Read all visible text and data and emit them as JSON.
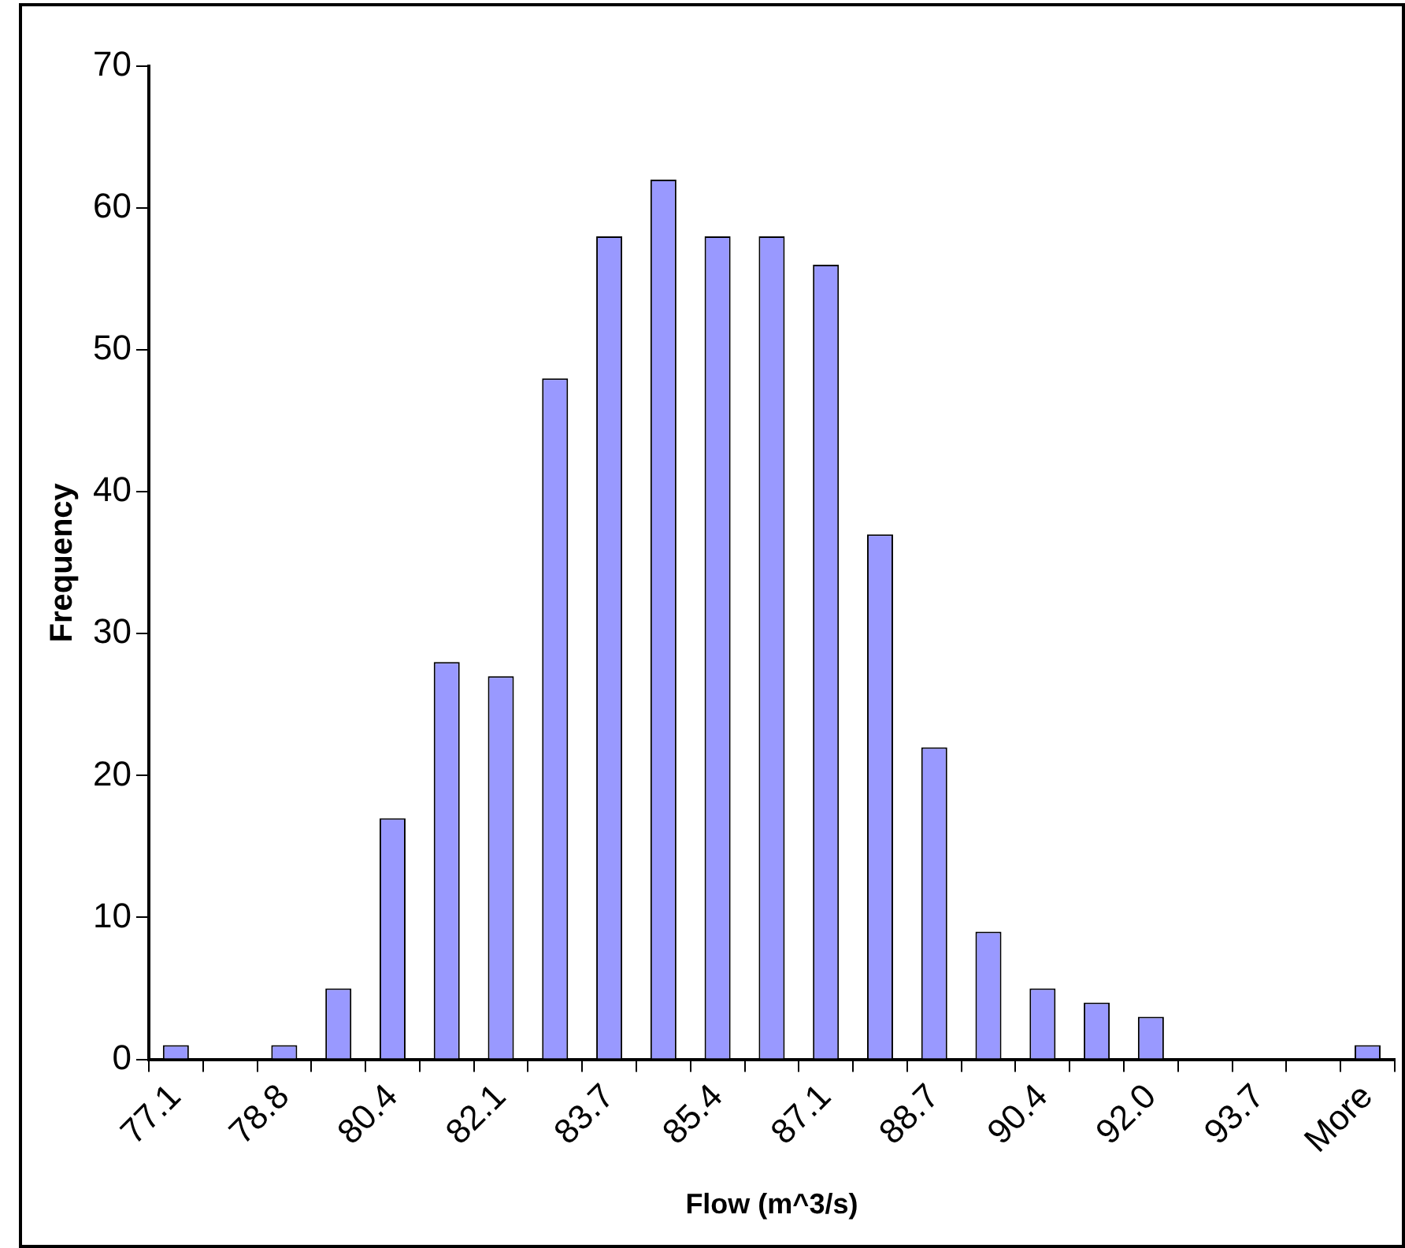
{
  "chart_data": {
    "type": "bar",
    "xlabel": "Flow (m^3/s)",
    "ylabel": "Frequency",
    "categories": [
      "77.1",
      null,
      "78.8",
      null,
      "80.4",
      null,
      "82.1",
      null,
      "83.7",
      null,
      "85.4",
      null,
      "87.1",
      null,
      "88.7",
      null,
      "90.4",
      null,
      "92.0",
      null,
      "93.7",
      null,
      "More"
    ],
    "values": [
      1,
      0,
      1,
      5,
      17,
      28,
      27,
      48,
      58,
      62,
      58,
      58,
      56,
      37,
      22,
      9,
      5,
      4,
      3,
      0,
      0,
      0,
      1
    ],
    "color": "#9999ff",
    "ylim": [
      0,
      70
    ],
    "yticks": [
      0,
      10,
      20,
      30,
      40,
      50,
      60,
      70
    ],
    "grid": false,
    "legend": false
  }
}
